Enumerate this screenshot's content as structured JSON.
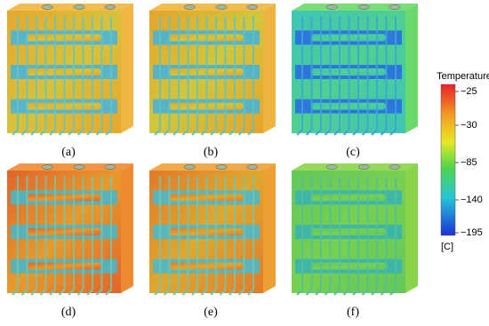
{
  "panels": [
    {
      "label": "(a)"
    },
    {
      "label": "(b)"
    },
    {
      "label": "(c)"
    },
    {
      "label": "(d)"
    },
    {
      "label": "(e)"
    },
    {
      "label": "(f)"
    }
  ],
  "colorbar": {
    "title": "Temperature",
    "tick_labels": [
      "−25",
      "−30",
      "−85",
      "−140",
      "−195"
    ],
    "unit": "[C]"
  }
}
